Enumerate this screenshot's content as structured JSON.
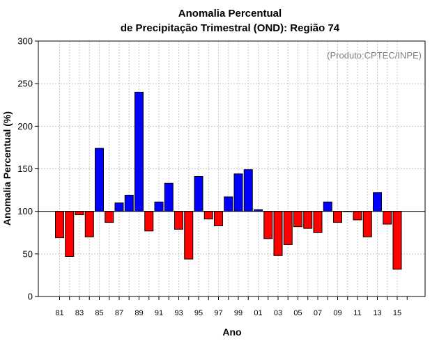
{
  "chart_data": {
    "type": "bar",
    "title_line1": "Anomalia Percentual",
    "title_line2": "de Precipitação Trimestral (OND): Região 74",
    "xlabel": "Ano",
    "ylabel": "Anomalia Percentual (%)",
    "annotation": "(Produto:CPTEC/INPE)",
    "ylim": [
      0,
      300
    ],
    "yticks": [
      "0",
      "50",
      "100",
      "150",
      "200",
      "250",
      "300"
    ],
    "baseline": 100,
    "grid": true,
    "colors": {
      "above": "#0000ff",
      "below": "#ff0000"
    },
    "years": [
      1981,
      1982,
      1983,
      1984,
      1985,
      1986,
      1987,
      1988,
      1989,
      1990,
      1991,
      1992,
      1993,
      1994,
      1995,
      1996,
      1997,
      1998,
      1999,
      2000,
      2001,
      2002,
      2003,
      2004,
      2005,
      2006,
      2007,
      2008,
      2009,
      2010,
      2011,
      2012,
      2013,
      2014,
      2015
    ],
    "categories": [
      "81",
      "82",
      "83",
      "84",
      "85",
      "86",
      "87",
      "88",
      "89",
      "90",
      "91",
      "92",
      "93",
      "94",
      "95",
      "96",
      "97",
      "98",
      "99",
      "00",
      "01",
      "02",
      "03",
      "04",
      "05",
      "06",
      "07",
      "08",
      "09",
      "10",
      "11",
      "12",
      "13",
      "14",
      "15"
    ],
    "xtick_labels": [
      "81",
      "83",
      "85",
      "87",
      "89",
      "91",
      "93",
      "95",
      "97",
      "99",
      "01",
      "03",
      "05",
      "07",
      "09",
      "11",
      "13",
      "15"
    ],
    "values": [
      69,
      47,
      96,
      70,
      174,
      87,
      110,
      119,
      240,
      77,
      111,
      133,
      79,
      44,
      141,
      91,
      83,
      117,
      144,
      149,
      102,
      68,
      48,
      61,
      82,
      80,
      75,
      111,
      87,
      100,
      90,
      70,
      122,
      85,
      32
    ]
  }
}
